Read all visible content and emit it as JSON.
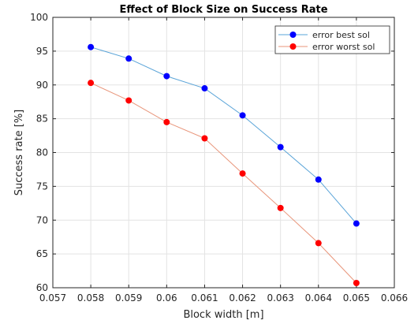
{
  "chart_data": {
    "type": "line",
    "title": "Effect of Block Size on Success Rate",
    "xlabel": "Block width [m]",
    "ylabel": "Success rate [%]",
    "xlim": [
      0.057,
      0.066
    ],
    "ylim": [
      60,
      100
    ],
    "x_ticks": [
      "0.057",
      "0.058",
      "0.059",
      "0.06",
      "0.061",
      "0.062",
      "0.063",
      "0.064",
      "0.065",
      "0.066"
    ],
    "y_ticks": [
      "60",
      "65",
      "70",
      "75",
      "80",
      "85",
      "90",
      "95",
      "100"
    ],
    "grid": true,
    "legend_position": "top-right",
    "x": [
      0.058,
      0.059,
      0.06,
      0.061,
      0.062,
      0.063,
      0.064,
      0.065
    ],
    "series": [
      {
        "name": "error best sol",
        "values": [
          95.6,
          93.9,
          91.3,
          89.5,
          85.5,
          80.8,
          76.0,
          69.5
        ],
        "line_color": "#5aa4d8",
        "marker_color": "#0000ff"
      },
      {
        "name": "error worst sol",
        "values": [
          90.3,
          87.7,
          84.5,
          82.1,
          76.9,
          71.8,
          66.6,
          60.7
        ],
        "line_color": "#e8957a",
        "marker_color": "#ff0000"
      }
    ]
  }
}
